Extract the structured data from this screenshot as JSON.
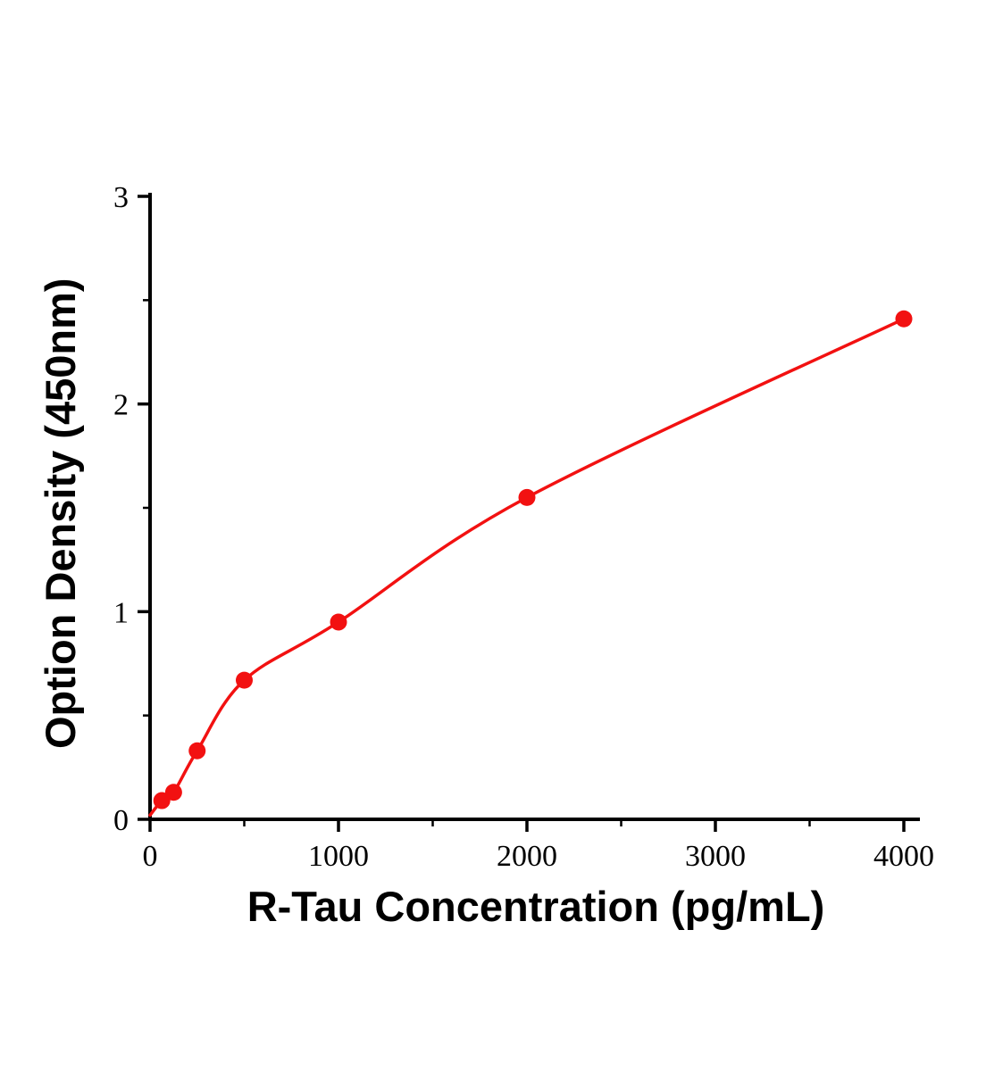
{
  "chart_data": {
    "type": "scatter",
    "title": "",
    "xlabel": "R-Tau Concentration (pg/mL)",
    "ylabel": "Option Density (450nm)",
    "x": [
      62.5,
      125,
      250,
      500,
      1000,
      2000,
      4000
    ],
    "y": [
      0.09,
      0.13,
      0.33,
      0.67,
      0.95,
      1.55,
      2.41
    ],
    "curve_start": [
      0,
      0.02
    ],
    "xlim": [
      0,
      4000
    ],
    "ylim": [
      0,
      3
    ],
    "x_ticks": [
      0,
      1000,
      2000,
      3000,
      4000
    ],
    "y_ticks": [
      0,
      1,
      2,
      3
    ],
    "x_minor_step": 500,
    "y_minor_step": 0.5,
    "grid": false,
    "legend": "none",
    "line_color": "#f21111",
    "marker_color": "#f21111",
    "axis_color": "#000000"
  }
}
